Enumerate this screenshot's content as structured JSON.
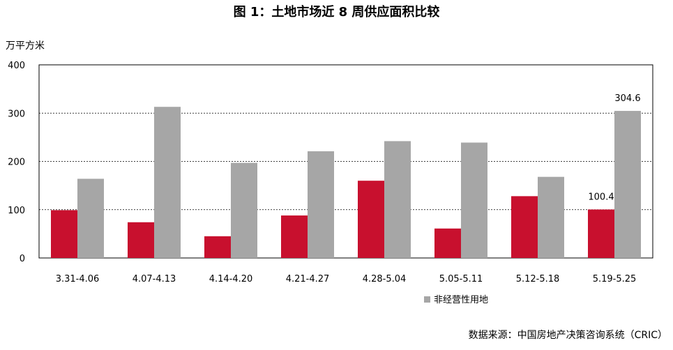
{
  "chart_data": {
    "type": "bar",
    "title": "图 1：土地市场近 8 周供应面积比较",
    "ylabel": "万平方米",
    "xlabel": "",
    "ylim": [
      0,
      400
    ],
    "yticks": [
      0,
      100,
      200,
      300,
      400
    ],
    "grid": true,
    "categories": [
      "3.31-4.06",
      "4.07-4.13",
      "4.14-4.20",
      "4.21-4.27",
      "4.28-5.04",
      "5.05-5.11",
      "5.12-5.18",
      "5.19-5.25"
    ],
    "series": [
      {
        "name": "",
        "color": "#C8102E",
        "values": [
          99,
          74,
          45,
          88,
          160,
          61,
          128,
          100.4
        ]
      },
      {
        "name": "非经营性用地",
        "color": "#A6A6A6",
        "values": [
          164,
          313,
          197,
          221,
          242,
          239,
          168,
          304.6
        ]
      }
    ],
    "data_labels": [
      {
        "series": 0,
        "index": 7,
        "text": "100.4"
      },
      {
        "series": 1,
        "index": 7,
        "text": "304.6"
      }
    ],
    "legend_position": "bottom-center"
  },
  "source": "数据来源：中国房地产决策咨询系统（CRIC）"
}
